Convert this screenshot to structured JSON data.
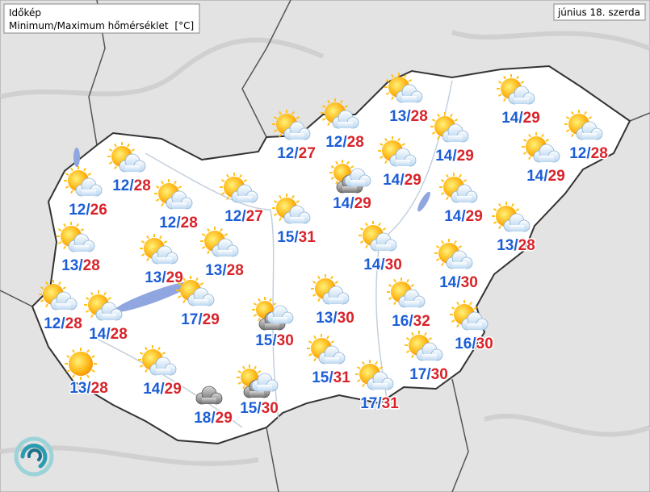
{
  "header": {
    "title": "Időkép",
    "subtitle": "Minimum/Maximum hőmérséklet",
    "unit": "[°C]"
  },
  "date": "június 18. szerda",
  "separator": "/",
  "stations": [
    {
      "min": 12,
      "max": 26,
      "icon": "sun-cloud"
    },
    {
      "min": 12,
      "max": 28,
      "icon": "sun-cloud"
    },
    {
      "min": 12,
      "max": 28,
      "icon": "sun-cloud"
    },
    {
      "min": 12,
      "max": 27,
      "icon": "sun-cloud"
    },
    {
      "min": 15,
      "max": 31,
      "icon": "sun-cloud"
    },
    {
      "min": 12,
      "max": 27,
      "icon": "sun-cloud"
    },
    {
      "min": 12,
      "max": 28,
      "icon": "sun-cloud"
    },
    {
      "min": 13,
      "max": 28,
      "icon": "sun-cloud"
    },
    {
      "min": 14,
      "max": 29,
      "icon": "sun-cloud"
    },
    {
      "min": 12,
      "max": 28,
      "icon": "sun-cloud"
    },
    {
      "min": 14,
      "max": 29,
      "icon": "sun-cloud"
    },
    {
      "min": 14,
      "max": 29,
      "icon": "sun-cloud"
    },
    {
      "min": 14,
      "max": 29,
      "icon": "sun-cloud"
    },
    {
      "min": 14,
      "max": 29,
      "icon": "sun-dark-cloud"
    },
    {
      "min": 14,
      "max": 29,
      "icon": "sun-cloud"
    },
    {
      "min": 13,
      "max": 28,
      "icon": "sun-cloud"
    },
    {
      "min": 14,
      "max": 30,
      "icon": "sun-cloud"
    },
    {
      "min": 14,
      "max": 30,
      "icon": "sun-cloud"
    },
    {
      "min": 13,
      "max": 28,
      "icon": "sun-cloud"
    },
    {
      "min": 13,
      "max": 29,
      "icon": "sun-cloud"
    },
    {
      "min": 13,
      "max": 28,
      "icon": "sun-cloud"
    },
    {
      "min": 12,
      "max": 28,
      "icon": "sun-cloud"
    },
    {
      "min": 14,
      "max": 28,
      "icon": "sun-cloud"
    },
    {
      "min": 17,
      "max": 29,
      "icon": "sun-cloud"
    },
    {
      "min": 15,
      "max": 30,
      "icon": "sun-dark-cloud"
    },
    {
      "min": 13,
      "max": 30,
      "icon": "sun-cloud"
    },
    {
      "min": 16,
      "max": 32,
      "icon": "sun-cloud"
    },
    {
      "min": 16,
      "max": 30,
      "icon": "sun-cloud"
    },
    {
      "min": 13,
      "max": 28,
      "icon": "sun"
    },
    {
      "min": 14,
      "max": 29,
      "icon": "sun-cloud"
    },
    {
      "min": 18,
      "max": 29,
      "icon": "dark-cloud"
    },
    {
      "min": 15,
      "max": 30,
      "icon": "sun-dark-cloud"
    },
    {
      "min": 15,
      "max": 31,
      "icon": "sun-cloud"
    },
    {
      "min": 17,
      "max": 30,
      "icon": "sun-cloud"
    },
    {
      "min": 17,
      "max": 31,
      "icon": "sun-cloud"
    }
  ]
}
